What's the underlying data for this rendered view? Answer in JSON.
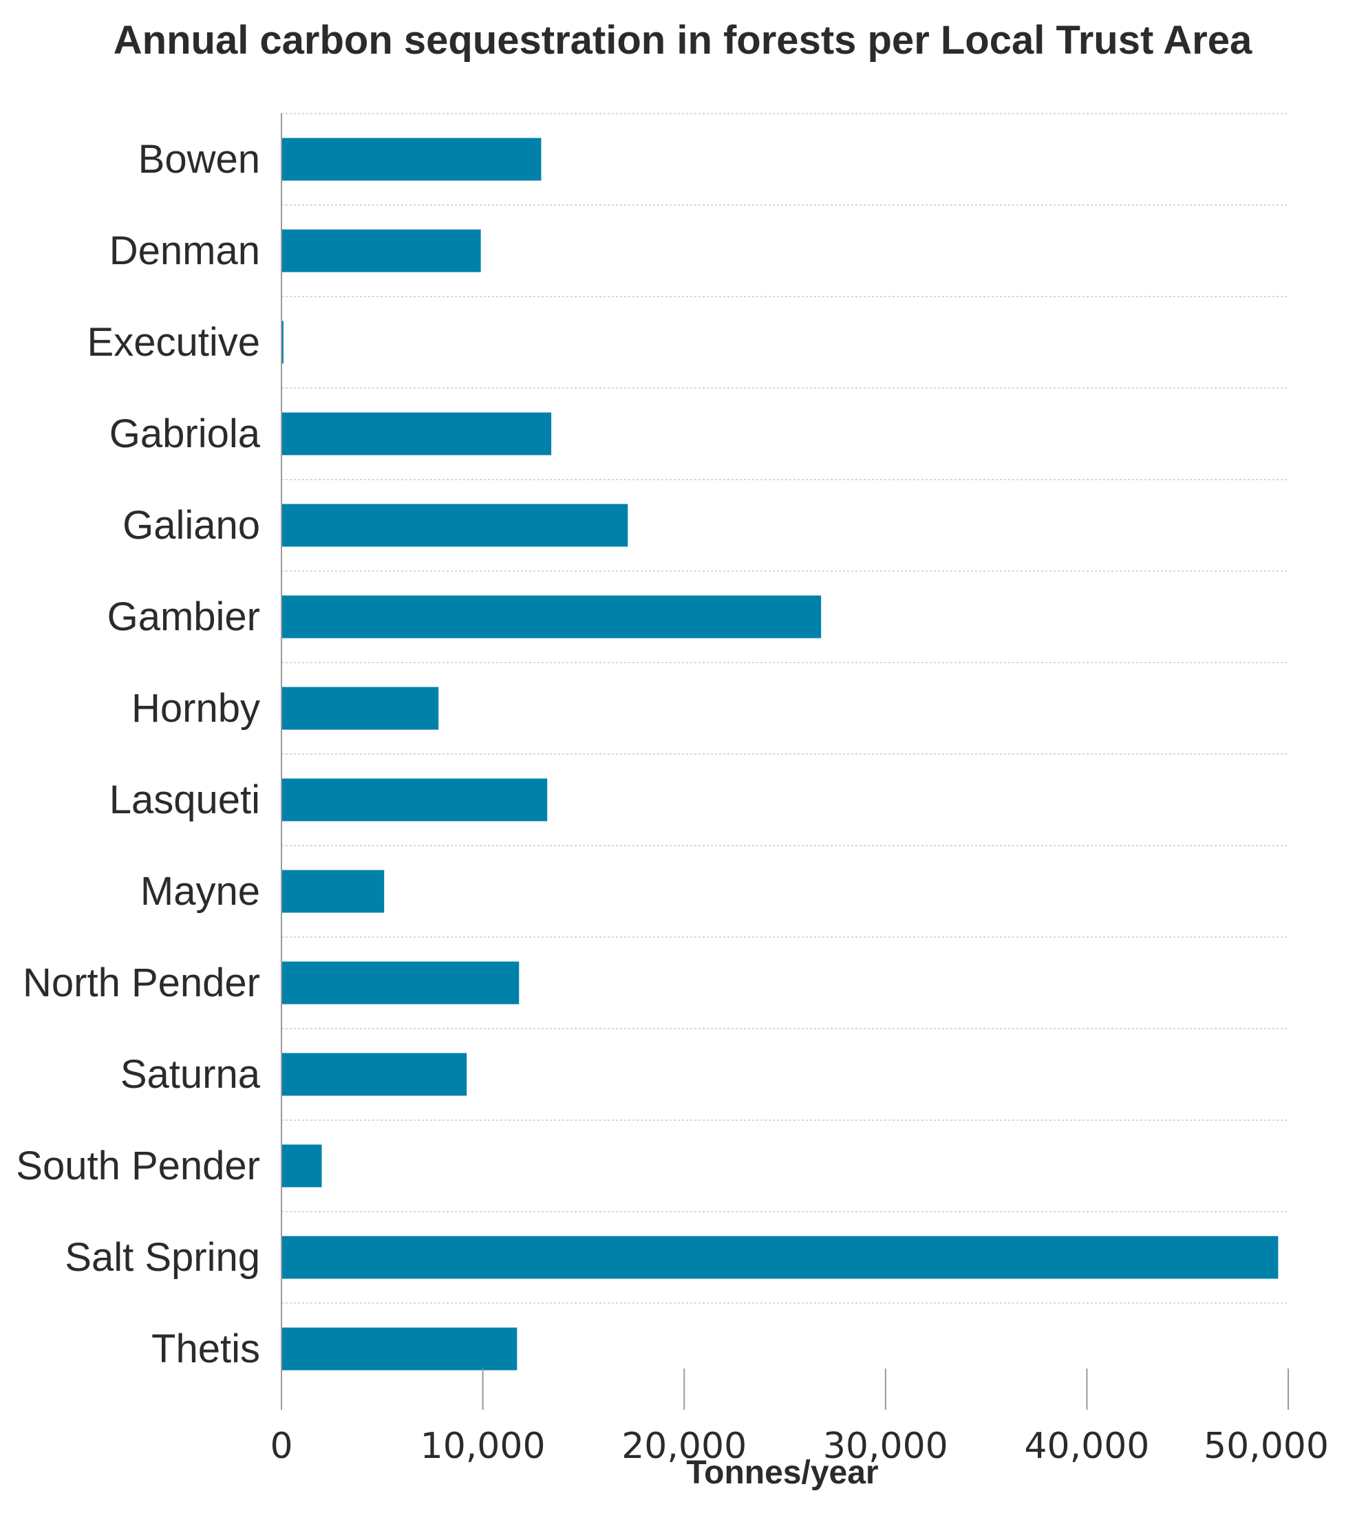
{
  "chart_data": {
    "type": "bar",
    "orientation": "horizontal",
    "title": "Annual carbon sequestration in forests per Local Trust Area",
    "xlabel": "Tonnes/year",
    "ylabel": "",
    "xlim": [
      0,
      50000
    ],
    "x_ticks": [
      0,
      10000,
      20000,
      30000,
      40000,
      50000
    ],
    "x_tick_labels": [
      "0",
      "10,000",
      "20,000",
      "30,000",
      "40,000",
      "50,000"
    ],
    "categories": [
      "Bowen",
      "Denman",
      "Executive",
      "Gabriola",
      "Galiano",
      "Gambier",
      "Hornby",
      "Lasqueti",
      "Mayne",
      "North Pender",
      "Saturna",
      "South Pender",
      "Salt Spring",
      "Thetis"
    ],
    "values": [
      12900,
      9900,
      100,
      13400,
      17200,
      26800,
      7800,
      13200,
      5100,
      11800,
      9200,
      2000,
      49500,
      11700
    ],
    "bar_color": "#0081aa",
    "grid": true,
    "legend": "none"
  }
}
